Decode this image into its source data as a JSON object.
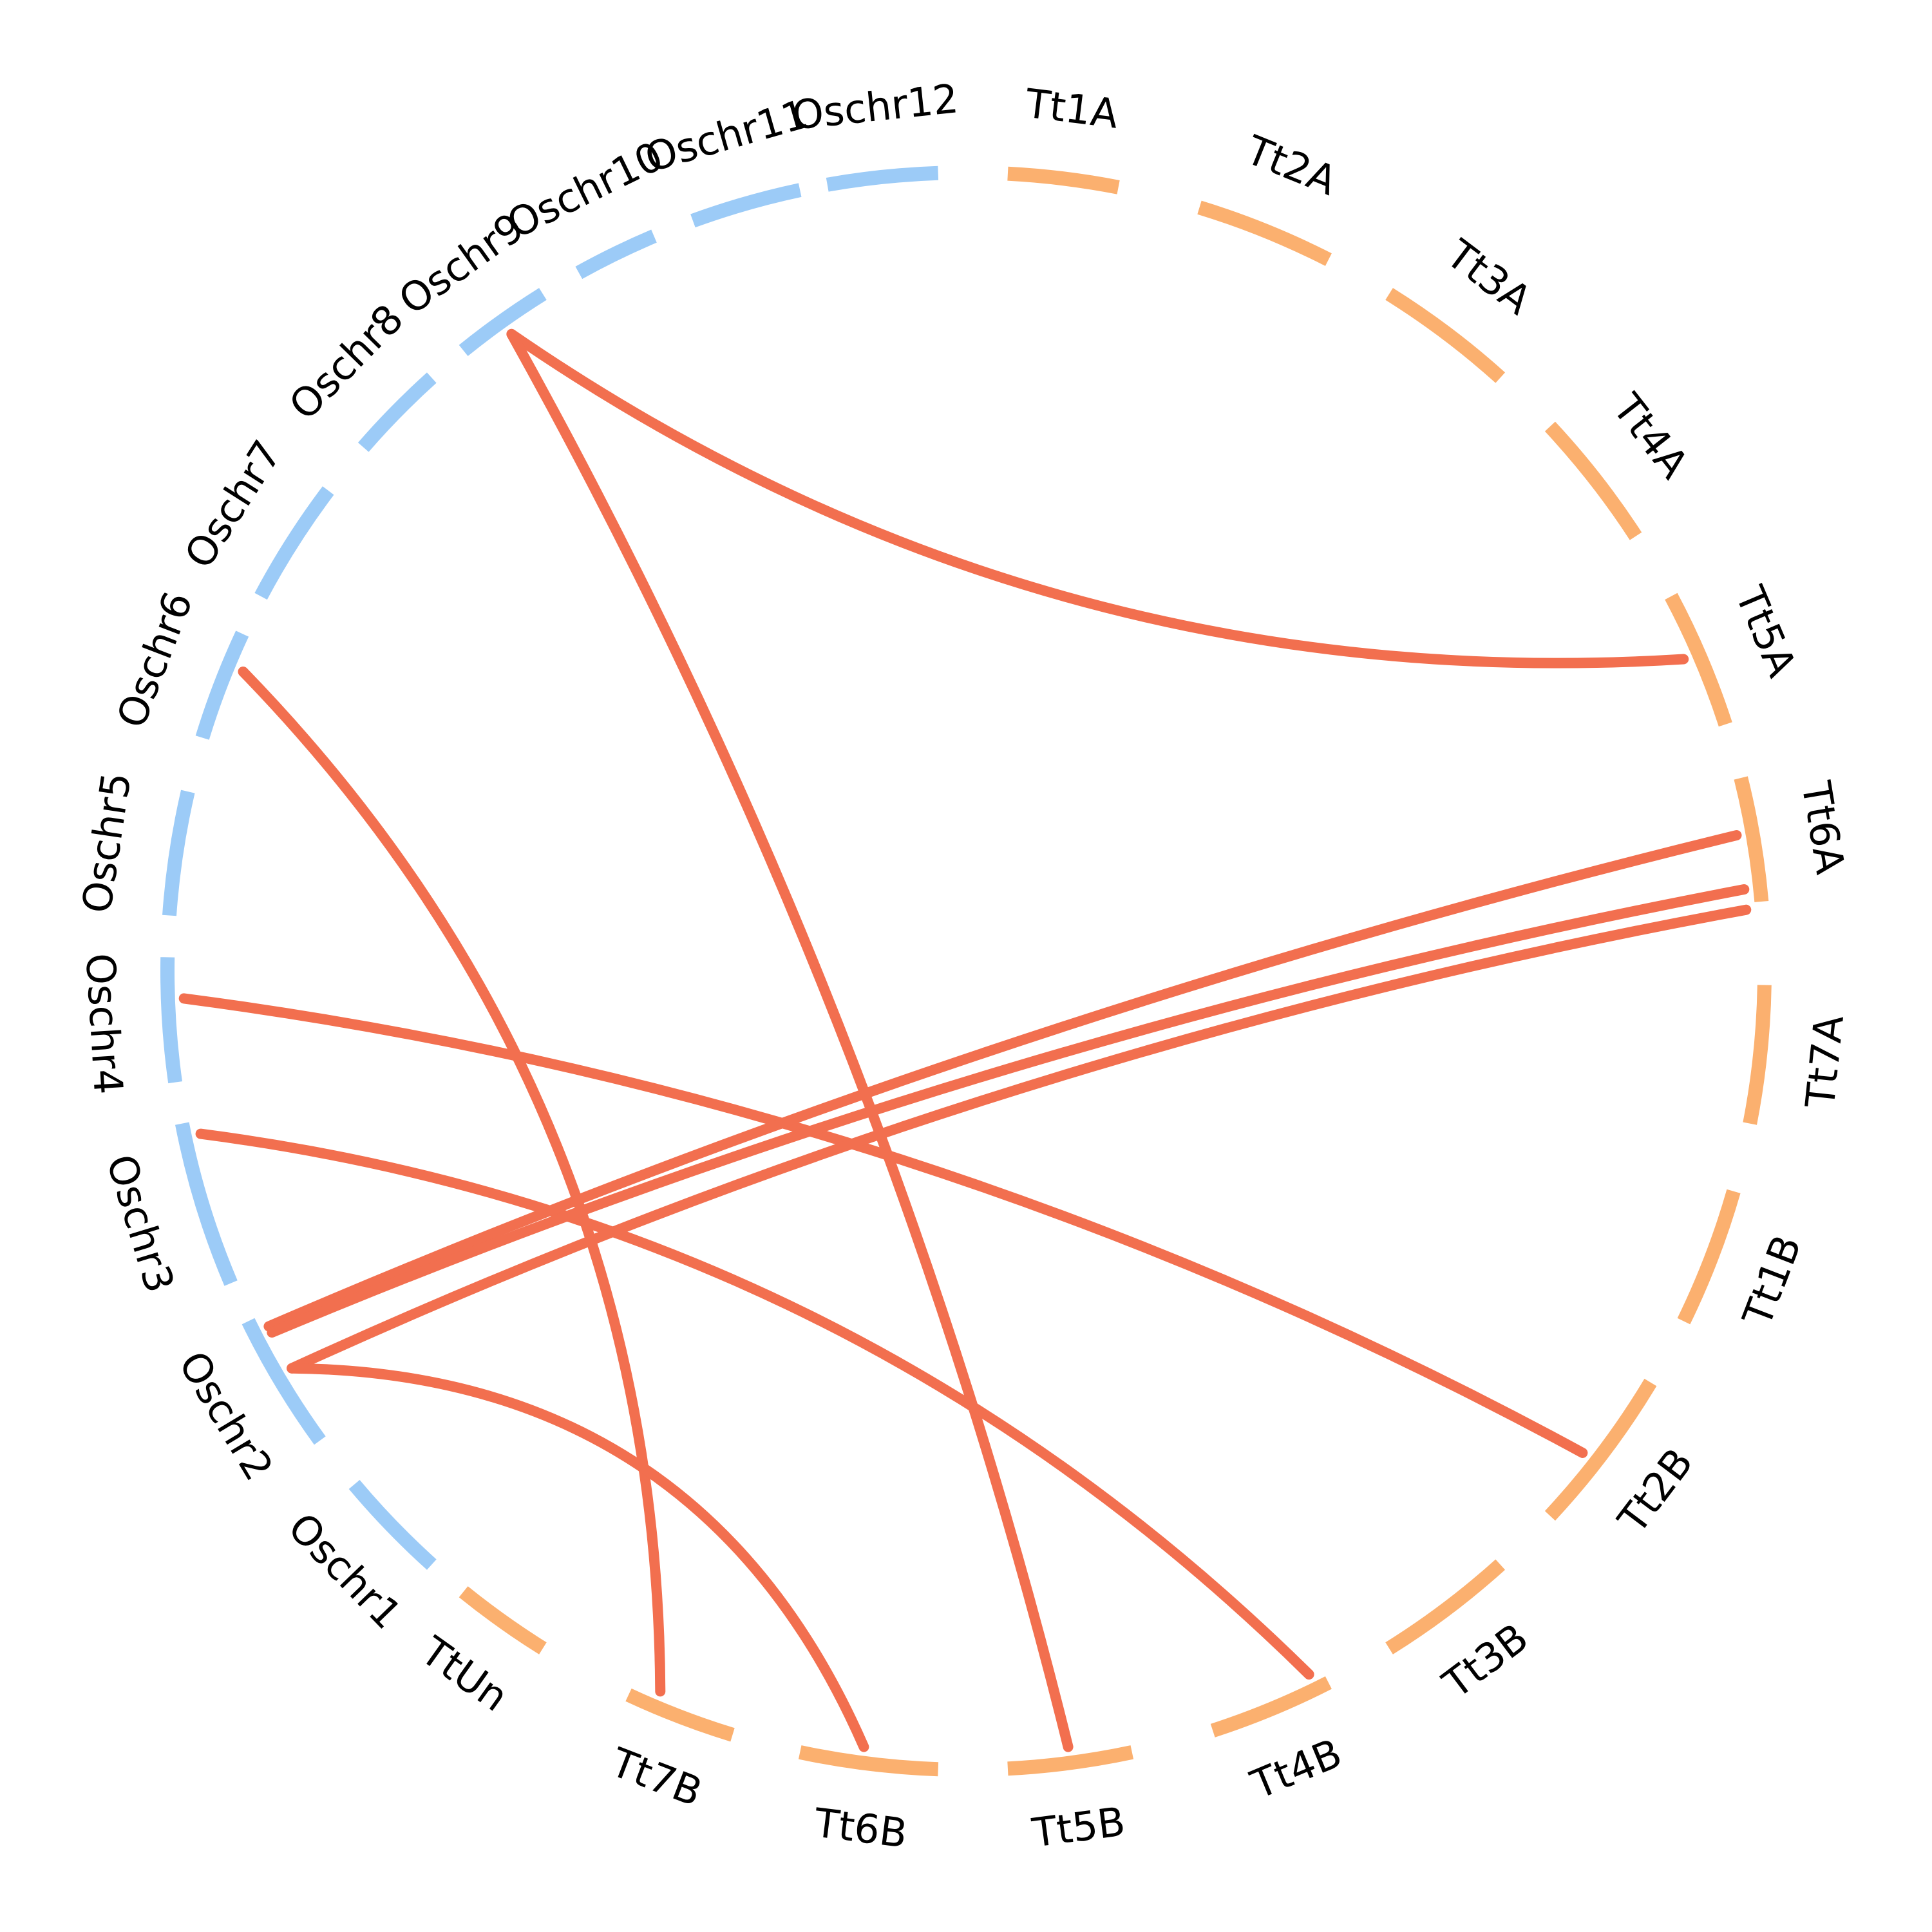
{
  "colors": {
    "rice": "#9ccbf7",
    "wheat": "#fbb06f",
    "link": "#f26f4f",
    "background": "#ffffff",
    "text": "#000000"
  },
  "chromosomes": [
    {
      "id": "Tt1A",
      "label": "Tt1A",
      "group": "wheat"
    },
    {
      "id": "Tt2A",
      "label": "Tt2A",
      "group": "wheat"
    },
    {
      "id": "Tt3A",
      "label": "Tt3A",
      "group": "wheat"
    },
    {
      "id": "Tt4A",
      "label": "Tt4A",
      "group": "wheat"
    },
    {
      "id": "Tt5A",
      "label": "Tt5A",
      "group": "wheat"
    },
    {
      "id": "Tt6A",
      "label": "Tt6A",
      "group": "wheat"
    },
    {
      "id": "Tt7A",
      "label": "Tt7A",
      "group": "wheat"
    },
    {
      "id": "Tt1B",
      "label": "Tt1B",
      "group": "wheat"
    },
    {
      "id": "Tt2B",
      "label": "Tt2B",
      "group": "wheat"
    },
    {
      "id": "Tt3B",
      "label": "Tt3B",
      "group": "wheat"
    },
    {
      "id": "Tt4B",
      "label": "Tt4B",
      "group": "wheat"
    },
    {
      "id": "Tt5B",
      "label": "Tt5B",
      "group": "wheat"
    },
    {
      "id": "Tt6B",
      "label": "Tt6B",
      "group": "wheat"
    },
    {
      "id": "Tt7B",
      "label": "Tt7B",
      "group": "wheat"
    },
    {
      "id": "TtUn",
      "label": "TtUn",
      "group": "wheat"
    },
    {
      "id": "Oschr1",
      "label": "Oschr1",
      "group": "rice"
    },
    {
      "id": "Oschr2",
      "label": "Oschr2",
      "group": "rice"
    },
    {
      "id": "Oschr3",
      "label": "Oschr3",
      "group": "rice"
    },
    {
      "id": "Oschr4",
      "label": "Oschr4",
      "group": "rice"
    },
    {
      "id": "Oschr5",
      "label": "Oschr5",
      "group": "rice"
    },
    {
      "id": "Oschr6",
      "label": "Oschr6",
      "group": "rice"
    },
    {
      "id": "Oschr7",
      "label": "Oschr7",
      "group": "rice"
    },
    {
      "id": "Oschr8",
      "label": "Oschr8",
      "group": "rice"
    },
    {
      "id": "Oschr9",
      "label": "Oschr9",
      "group": "rice"
    },
    {
      "id": "Oschr10",
      "label": "Oschr10",
      "group": "rice"
    },
    {
      "id": "Oschr11",
      "label": "Oschr11",
      "group": "rice"
    },
    {
      "id": "Oschr12",
      "label": "Oschr12",
      "group": "rice"
    }
  ],
  "links": [
    {
      "from": "Oschr9",
      "to": "Tt5A"
    },
    {
      "from": "Oschr9",
      "to": "Tt5B"
    },
    {
      "from": "Oschr6",
      "to": "Tt7B"
    },
    {
      "from": "Oschr4",
      "to": "Tt2B"
    },
    {
      "from": "Oschr3",
      "to": "Tt4B"
    },
    {
      "from": "Oschr2",
      "to": "Tt6A"
    },
    {
      "from": "Oschr2",
      "to": "Tt6A"
    },
    {
      "from": "Oschr2",
      "to": "Tt6A"
    },
    {
      "from": "Oschr2",
      "to": "Tt6B"
    }
  ]
}
